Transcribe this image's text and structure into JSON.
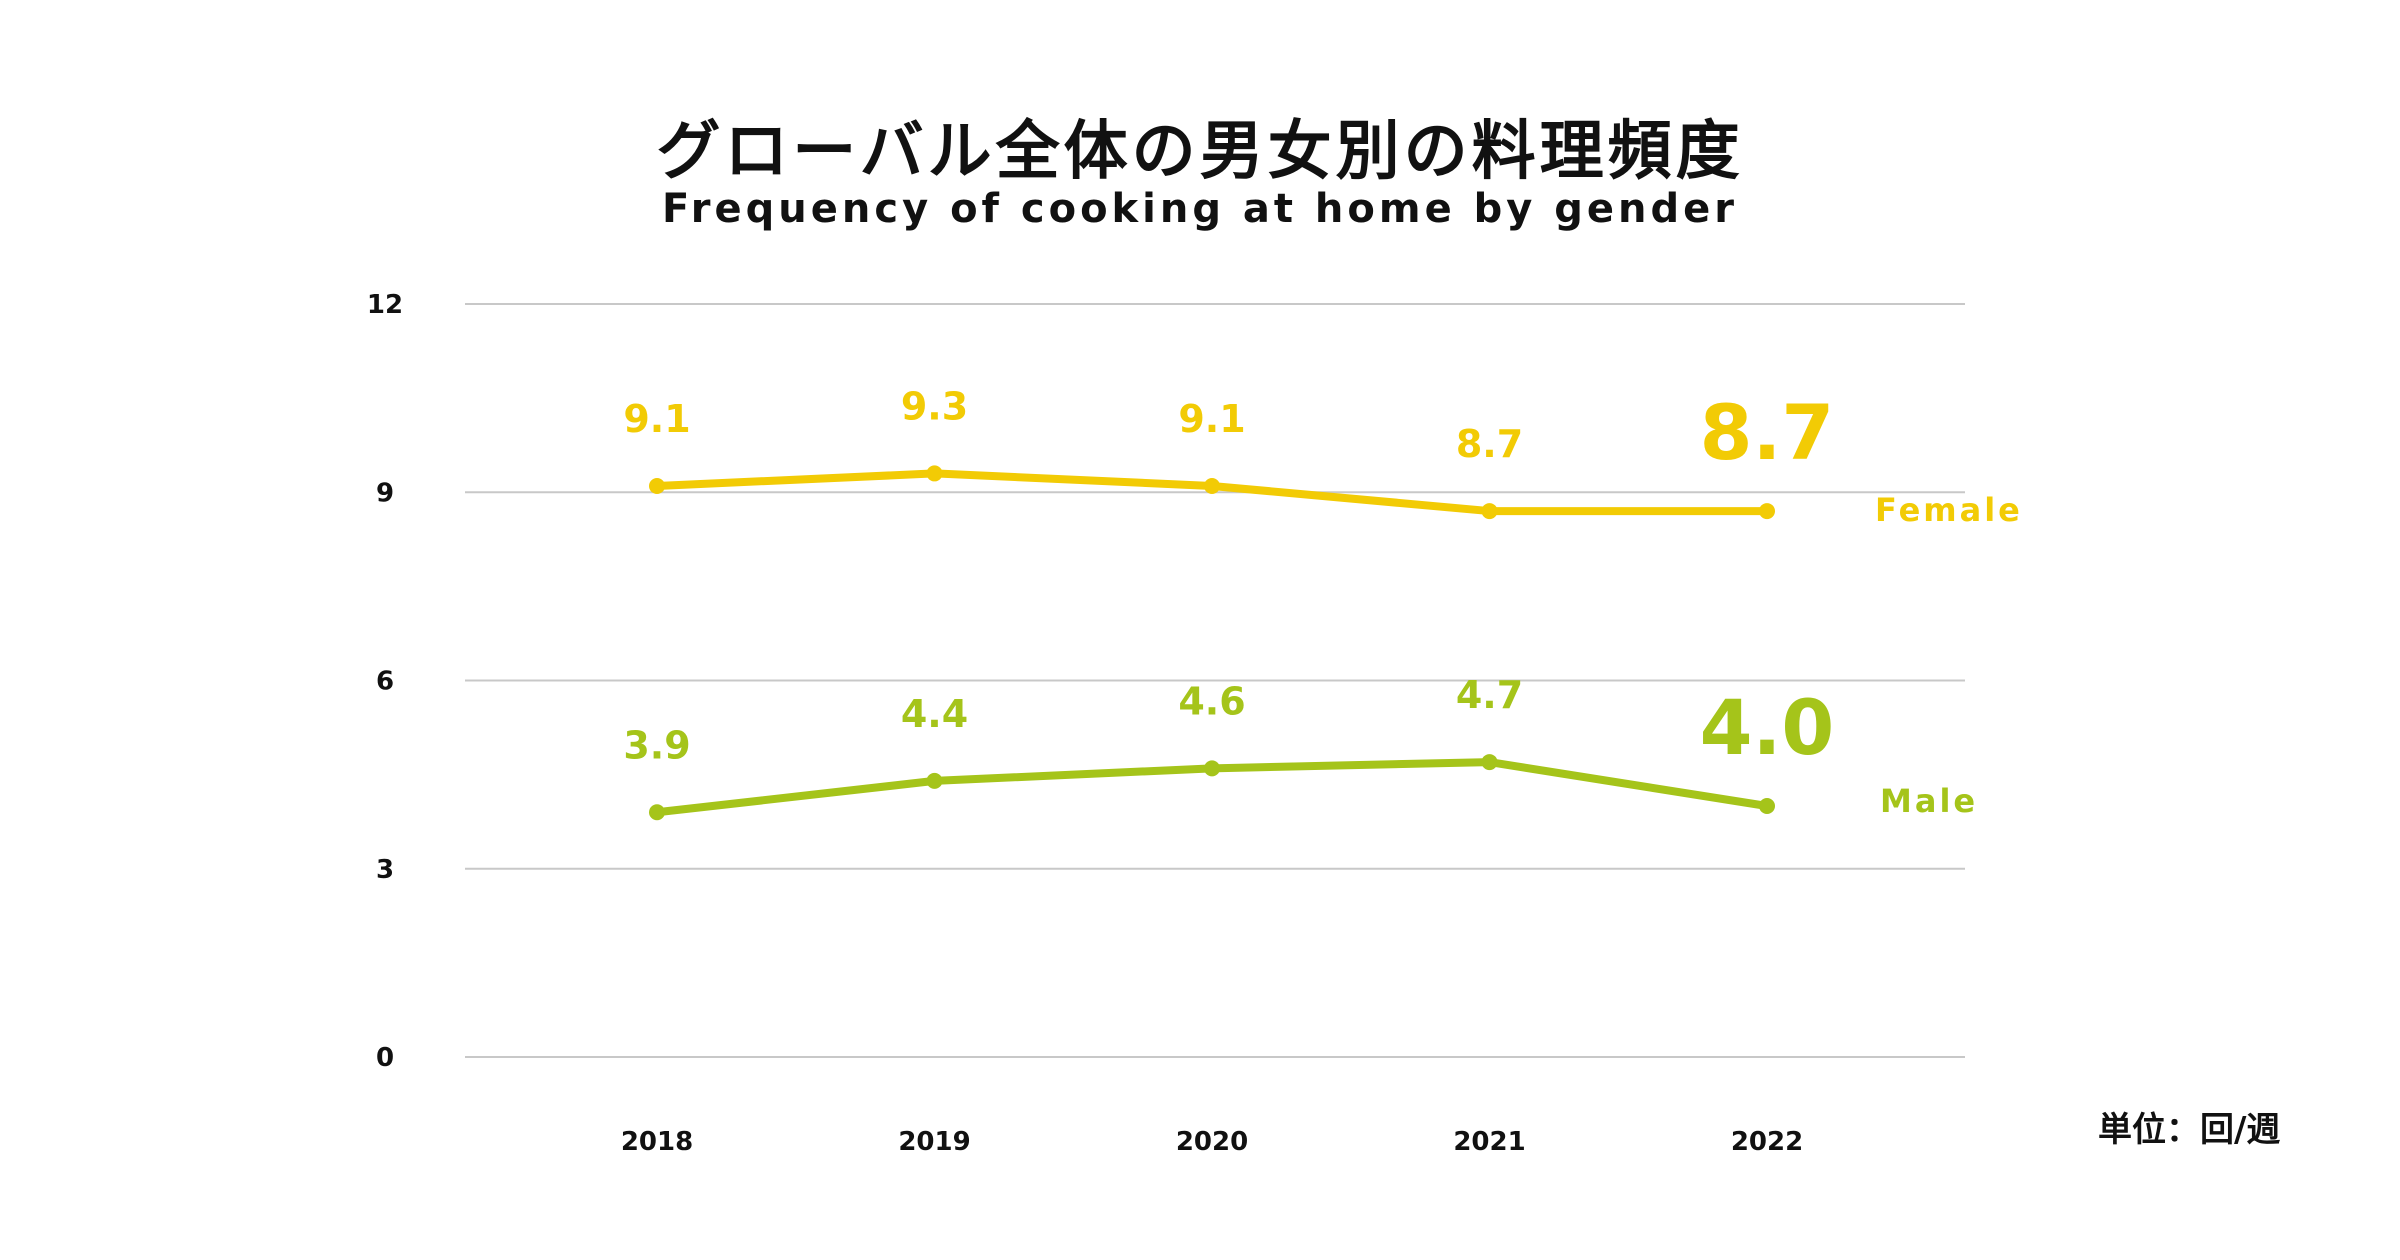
{
  "header": {
    "title": "グローバル全体の男女別の料理頻度",
    "subtitle": "Frequency of cooking at home by gender"
  },
  "unit_label": "単位：回/週",
  "chart_data": {
    "type": "line",
    "title": "グローバル全体の男女別の料理頻度",
    "subtitle": "Frequency of cooking at home by gender",
    "xlabel": "",
    "ylabel": "",
    "unit": "単位：回/週",
    "x": [
      "2018",
      "2019",
      "2020",
      "2021",
      "2022"
    ],
    "ylim": [
      0,
      12
    ],
    "yticks": [
      0,
      3,
      6,
      9,
      12
    ],
    "grid": true,
    "legend": "end-of-line labels (right)",
    "series": [
      {
        "name": "Female",
        "color": "#f2cb05",
        "values": [
          9.1,
          9.3,
          9.1,
          8.7,
          8.7
        ],
        "labels": [
          "9.1",
          "9.3",
          "9.1",
          "8.7",
          "8.7"
        ]
      },
      {
        "name": "Male",
        "color": "#a5c41a",
        "values": [
          3.9,
          4.4,
          4.6,
          4.7,
          4.0
        ],
        "labels": [
          "3.9",
          "4.4",
          "4.6",
          "4.7",
          "4.0"
        ]
      }
    ]
  }
}
